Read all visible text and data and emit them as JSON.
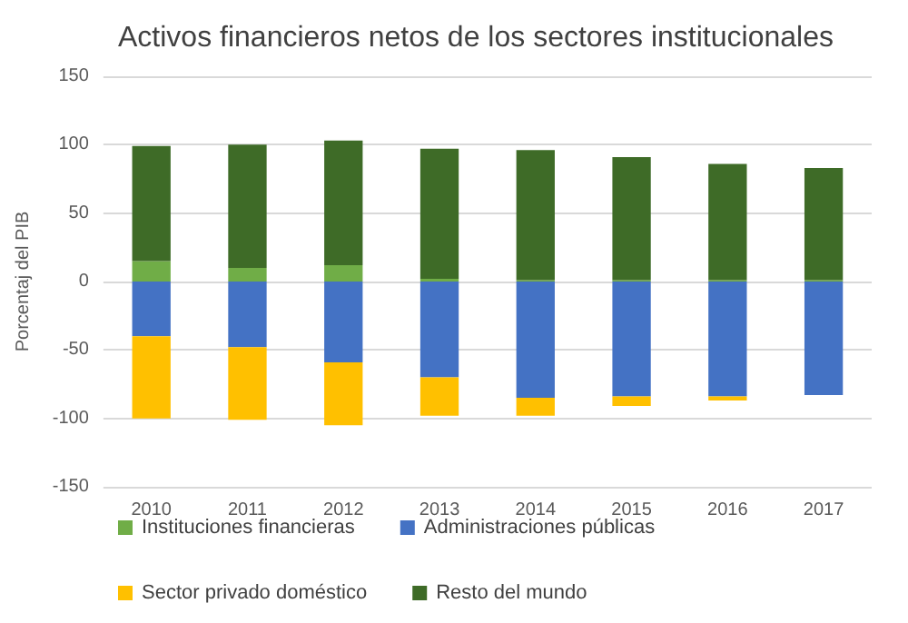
{
  "chart_data": {
    "type": "bar",
    "title": "Activos financieros netos de los sectores institucionales",
    "ylabel": "Porcentaj del PIB",
    "categories": [
      "2010",
      "2011",
      "2012",
      "2013",
      "2014",
      "2015",
      "2016",
      "2017"
    ],
    "stacked": true,
    "series": [
      {
        "name": "Instituciones financieras",
        "color": "#70ad47",
        "values": [
          15,
          10,
          12,
          2,
          1,
          1,
          1,
          1
        ]
      },
      {
        "name": "Administraciones públicas",
        "color": "#4472c4",
        "values": [
          -40,
          -48,
          -59,
          -70,
          -85,
          -84,
          -84,
          -83
        ]
      },
      {
        "name": "Sector privado doméstico",
        "color": "#ffc000",
        "values": [
          -60,
          -53,
          -46,
          -28,
          -13,
          -7,
          -3,
          0
        ]
      },
      {
        "name": "Resto del mundo",
        "color": "#3e6b27",
        "values": [
          84,
          90,
          91,
          95,
          95,
          90,
          85,
          82
        ]
      }
    ],
    "ylim": [
      -150,
      150
    ],
    "yticks": [
      -150,
      -100,
      -50,
      0,
      50,
      100,
      150
    ],
    "grid": "y",
    "legend": "bottom"
  }
}
